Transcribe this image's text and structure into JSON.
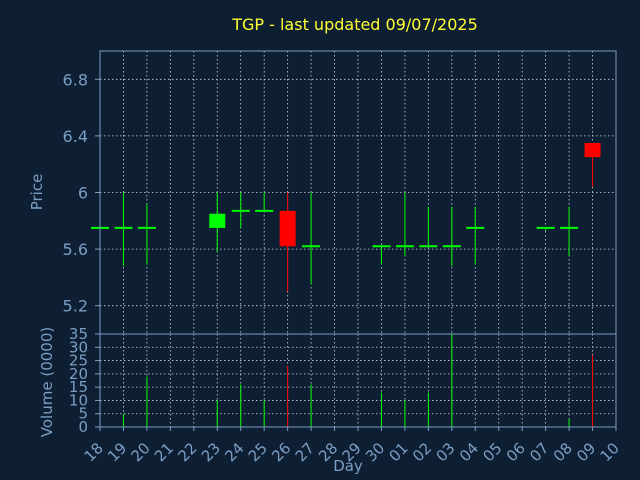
{
  "chart_data": [
    {
      "type": "candlestick",
      "title": "TGP - last updated 09/07/2025",
      "ylabel": "Price",
      "ylim": [
        5.0,
        7.0
      ],
      "yticks": [
        5.2,
        5.6,
        6,
        6.4,
        6.8
      ],
      "ytick_labels": [
        "5.2",
        "5.6",
        "6",
        "6.4",
        "6.8"
      ],
      "grid": true,
      "colors": {
        "up": "#00ff00",
        "down": "#ff0000",
        "flat": "#00ff00"
      },
      "candles": [
        {
          "day": "18",
          "open": 5.75,
          "high": 5.75,
          "low": 5.75,
          "close": 5.75
        },
        {
          "day": "19",
          "open": 5.75,
          "high": 6.0,
          "low": 5.48,
          "close": 5.75
        },
        {
          "day": "20",
          "open": 5.75,
          "high": 5.92,
          "low": 5.49,
          "close": 5.75
        },
        {
          "day": "23",
          "open": 5.75,
          "high": 6.0,
          "low": 5.58,
          "close": 5.85
        },
        {
          "day": "24",
          "open": 5.87,
          "high": 6.0,
          "low": 5.75,
          "close": 5.87
        },
        {
          "day": "25",
          "open": 5.87,
          "high": 6.0,
          "low": 5.87,
          "close": 5.87
        },
        {
          "day": "26",
          "open": 5.87,
          "high": 6.0,
          "low": 5.3,
          "close": 5.62
        },
        {
          "day": "27",
          "open": 5.62,
          "high": 6.0,
          "low": 5.35,
          "close": 5.62
        },
        {
          "day": "30",
          "open": 5.62,
          "high": 5.62,
          "low": 5.49,
          "close": 5.62
        },
        {
          "day": "01",
          "open": 5.62,
          "high": 6.0,
          "low": 5.55,
          "close": 5.62
        },
        {
          "day": "02",
          "open": 5.62,
          "high": 5.9,
          "low": 5.62,
          "close": 5.62
        },
        {
          "day": "03",
          "open": 5.62,
          "high": 5.9,
          "low": 5.48,
          "close": 5.62
        },
        {
          "day": "04",
          "open": 5.75,
          "high": 5.9,
          "low": 5.49,
          "close": 5.75
        },
        {
          "day": "07",
          "open": 5.75,
          "high": 5.75,
          "low": 5.73,
          "close": 5.75
        },
        {
          "day": "08",
          "open": 5.75,
          "high": 5.9,
          "low": 5.55,
          "close": 5.75
        },
        {
          "day": "09",
          "open": 6.35,
          "high": 6.35,
          "low": 6.04,
          "close": 6.25
        }
      ]
    },
    {
      "type": "bar",
      "ylabel": "Volume (0000)",
      "xlabel": "Day",
      "ylim": [
        0,
        35
      ],
      "yticks": [
        0,
        5,
        10,
        15,
        20,
        25,
        30,
        35
      ],
      "ytick_labels": [
        "0",
        "5",
        "10",
        "15",
        "20",
        "25",
        "30",
        "35"
      ],
      "grid": true,
      "x_tick_labels": [
        "18",
        "19",
        "20",
        "21",
        "22",
        "23",
        "24",
        "25",
        "26",
        "27",
        "28",
        "29",
        "30",
        "01",
        "02",
        "03",
        "04",
        "05",
        "06",
        "07",
        "08",
        "09",
        "10"
      ],
      "volumes": [
        {
          "day": "18",
          "value": 0,
          "color": "#00ff00"
        },
        {
          "day": "19",
          "value": 5,
          "color": "#00ff00"
        },
        {
          "day": "20",
          "value": 19,
          "color": "#00ff00"
        },
        {
          "day": "23",
          "value": 10,
          "color": "#00ff00"
        },
        {
          "day": "24",
          "value": 16,
          "color": "#00ff00"
        },
        {
          "day": "25",
          "value": 10,
          "color": "#00ff00"
        },
        {
          "day": "26",
          "value": 23,
          "color": "#ff0000"
        },
        {
          "day": "27",
          "value": 16,
          "color": "#00ff00"
        },
        {
          "day": "30",
          "value": 13,
          "color": "#00ff00"
        },
        {
          "day": "01",
          "value": 10,
          "color": "#00ff00"
        },
        {
          "day": "02",
          "value": 13,
          "color": "#00ff00"
        },
        {
          "day": "03",
          "value": 35,
          "color": "#00ff00"
        },
        {
          "day": "04",
          "value": 0,
          "color": "#00ff00"
        },
        {
          "day": "07",
          "value": 0,
          "color": "#00ff00"
        },
        {
          "day": "08",
          "value": 3,
          "color": "#00ff00"
        },
        {
          "day": "09",
          "value": 27,
          "color": "#ff0000"
        }
      ]
    }
  ]
}
